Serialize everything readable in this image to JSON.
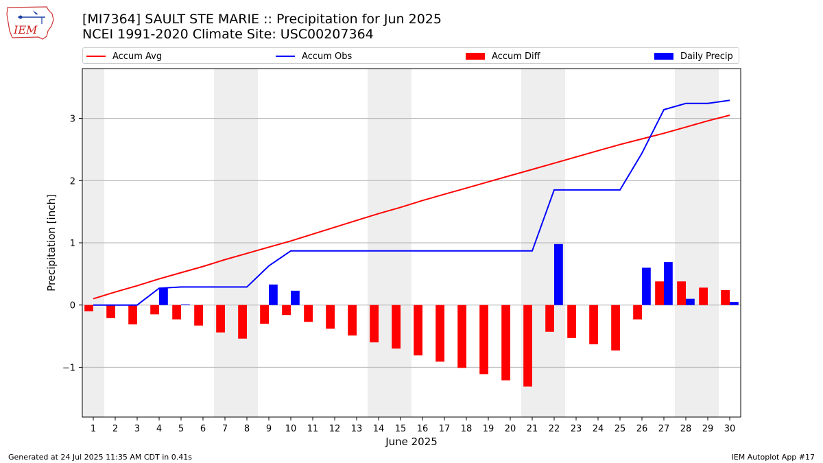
{
  "header": {
    "title_line1": "[MI7364] SAULT STE MARIE :: Precipitation for Jun 2025",
    "title_line2": "NCEI 1991-2020 Climate Site: USC00207364"
  },
  "logo": {
    "text": "IEM",
    "icon": "iem-iowa-logo"
  },
  "footer": {
    "left": "Generated at 24 Jul 2025 11:35 AM CDT in 0.41s",
    "right": "IEM Autoplot App #17"
  },
  "legend": {
    "accum_avg": "Accum Avg",
    "accum_obs": "Accum Obs",
    "accum_diff": "Accum Diff",
    "daily_precip": "Daily Precip"
  },
  "colors": {
    "accum_avg": "#ff0000",
    "accum_obs": "#0000ff",
    "accum_diff": "#ff0000",
    "daily_precip": "#0000ff",
    "weekend_shade": "#eeeeee",
    "grid": "#b0b0b0"
  },
  "chart_data": {
    "type": "bar",
    "xlabel": "June 2025",
    "ylabel": "Precipitation [inch]",
    "ylim": [
      -1.8,
      3.8
    ],
    "yticks": [
      -1,
      0,
      1,
      2,
      3
    ],
    "ytick_labels": [
      "−1",
      "0",
      "1",
      "2",
      "3"
    ],
    "grid": "horizontal",
    "legend_position": "top",
    "x": [
      1,
      2,
      3,
      4,
      5,
      6,
      7,
      8,
      9,
      10,
      11,
      12,
      13,
      14,
      15,
      16,
      17,
      18,
      19,
      20,
      21,
      22,
      23,
      24,
      25,
      26,
      27,
      28,
      29,
      30
    ],
    "weekend_days": [
      1,
      7,
      8,
      14,
      15,
      21,
      22,
      28,
      29
    ],
    "series": [
      {
        "name": "Accum Avg",
        "kind": "line",
        "values": [
          0.1,
          0.21,
          0.31,
          0.42,
          0.52,
          0.62,
          0.73,
          0.83,
          0.93,
          1.03,
          1.14,
          1.25,
          1.36,
          1.47,
          1.57,
          1.68,
          1.78,
          1.88,
          1.98,
          2.08,
          2.18,
          2.28,
          2.38,
          2.48,
          2.58,
          2.67,
          2.76,
          2.86,
          2.96,
          3.05
        ]
      },
      {
        "name": "Accum Obs",
        "kind": "line",
        "values": [
          0.0,
          0.0,
          0.0,
          0.27,
          0.29,
          0.29,
          0.29,
          0.29,
          0.63,
          0.87,
          0.87,
          0.87,
          0.87,
          0.87,
          0.87,
          0.87,
          0.87,
          0.87,
          0.87,
          0.87,
          0.87,
          1.85,
          1.85,
          1.85,
          1.85,
          2.44,
          3.14,
          3.24,
          3.24,
          3.29
        ]
      },
      {
        "name": "Accum Diff",
        "kind": "bar",
        "values": [
          -0.1,
          -0.21,
          -0.31,
          -0.15,
          -0.23,
          -0.33,
          -0.44,
          -0.54,
          -0.3,
          -0.16,
          -0.27,
          -0.38,
          -0.49,
          -0.6,
          -0.7,
          -0.81,
          -0.91,
          -1.01,
          -1.11,
          -1.21,
          -1.31,
          -0.43,
          -0.53,
          -0.63,
          -0.73,
          -0.23,
          0.38,
          0.38,
          0.28,
          0.24
        ]
      },
      {
        "name": "Daily Precip",
        "kind": "bar",
        "values": [
          0,
          0,
          0,
          0.27,
          0.01,
          0,
          0,
          0,
          0.33,
          0.23,
          0,
          0,
          0,
          0,
          0,
          0,
          0,
          0,
          0,
          0,
          0,
          0.98,
          0,
          0,
          0,
          0.6,
          0.69,
          0.1,
          0,
          0.05
        ]
      }
    ]
  }
}
